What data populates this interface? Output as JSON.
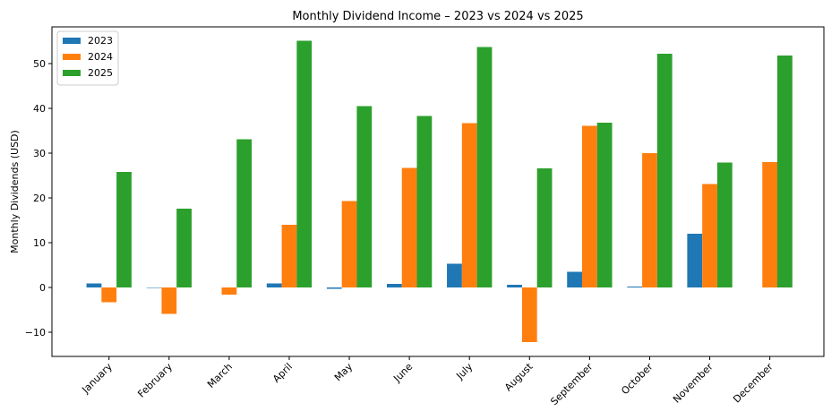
{
  "chart_data": {
    "type": "bar",
    "title": "Monthly Dividend Income – 2023 vs 2024 vs 2025",
    "ylabel": "Monthly Dividends (USD)",
    "categories": [
      "January",
      "February",
      "March",
      "April",
      "May",
      "June",
      "July",
      "August",
      "September",
      "October",
      "November",
      "December"
    ],
    "series": [
      {
        "name": "2023",
        "color": "#1f77b4",
        "values": [
          0.9,
          -0.1,
          0,
          0.9,
          -0.3,
          0.8,
          5.3,
          0.6,
          3.5,
          0.2,
          12.0,
          0
        ]
      },
      {
        "name": "2024",
        "color": "#ff7f0e",
        "values": [
          -3.3,
          -5.9,
          -1.6,
          14.0,
          19.3,
          26.7,
          36.7,
          -12.2,
          36.1,
          30.0,
          23.1,
          28.0
        ]
      },
      {
        "name": "2025",
        "color": "#2ca02c",
        "values": [
          25.8,
          17.6,
          33.1,
          55.1,
          40.5,
          38.3,
          53.7,
          26.6,
          36.8,
          52.2,
          27.9,
          51.8
        ]
      }
    ],
    "ylim": [
      -15.4,
      58.2
    ],
    "yticks": [
      {
        "value": -10,
        "label": "−10"
      },
      0,
      10,
      20,
      30,
      40,
      50
    ],
    "legend": "upper-left"
  }
}
